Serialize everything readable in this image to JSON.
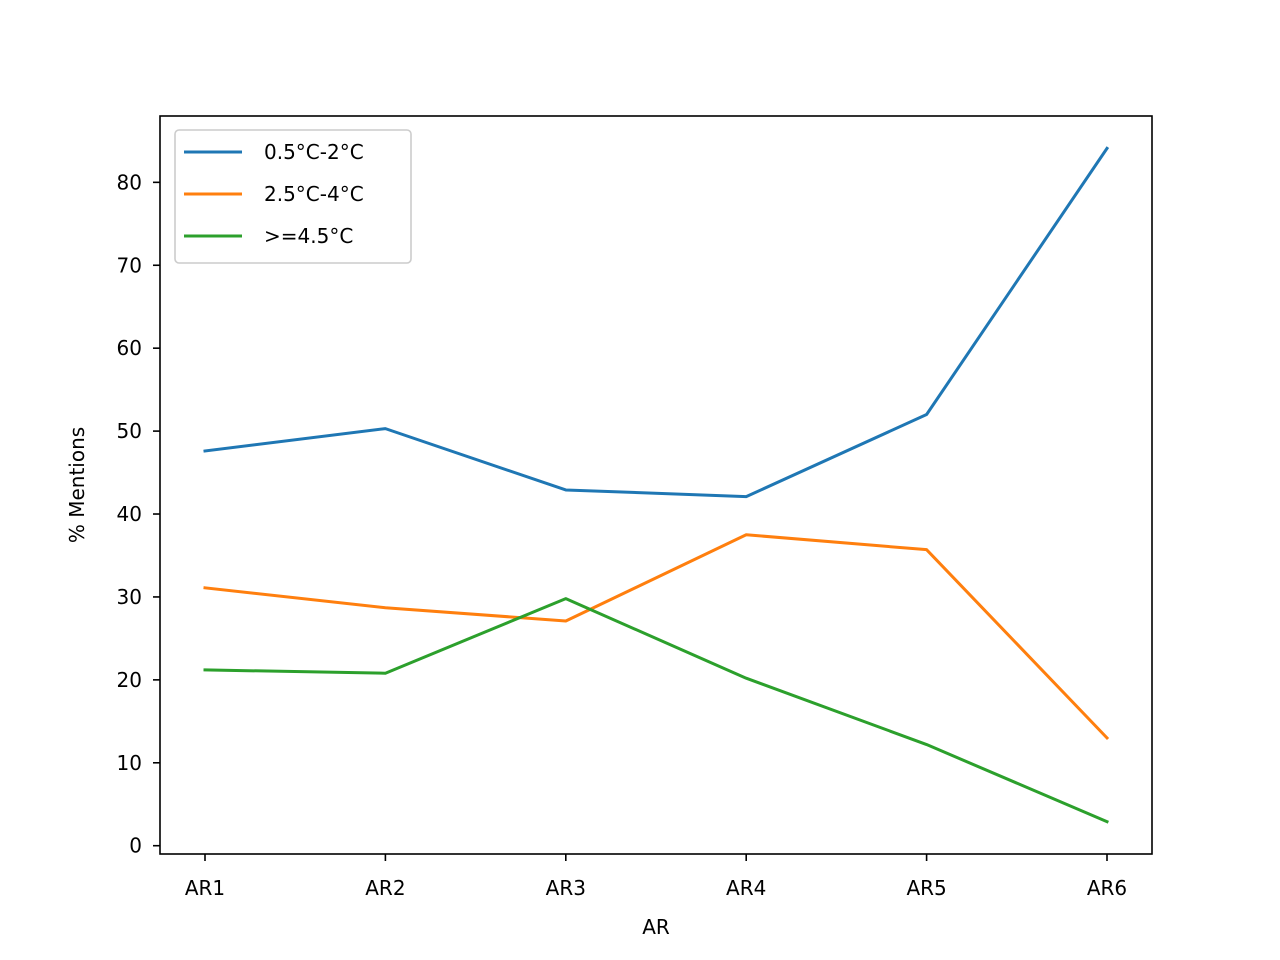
{
  "chart_data": {
    "type": "line",
    "title": "",
    "xlabel": "AR",
    "ylabel": "% Mentions",
    "categories": [
      "AR1",
      "AR2",
      "AR3",
      "AR4",
      "AR5",
      "AR6"
    ],
    "ylim": [
      -1,
      88
    ],
    "yticks": [
      0,
      10,
      20,
      30,
      40,
      50,
      60,
      70,
      80
    ],
    "grid": false,
    "legend_position": "upper-left",
    "series": [
      {
        "name": "0.5°C-2°C",
        "color": "#1f77b4",
        "values": [
          47.6,
          50.3,
          42.9,
          42.1,
          52.0,
          84.1
        ]
      },
      {
        "name": "2.5°C-4°C",
        "color": "#ff7f0e",
        "values": [
          31.1,
          28.7,
          27.1,
          37.5,
          35.7,
          13.0
        ]
      },
      {
        "name": ">=4.5°C",
        "color": "#2ca02c",
        "values": [
          21.2,
          20.8,
          29.8,
          20.2,
          12.2,
          2.9
        ]
      }
    ]
  }
}
